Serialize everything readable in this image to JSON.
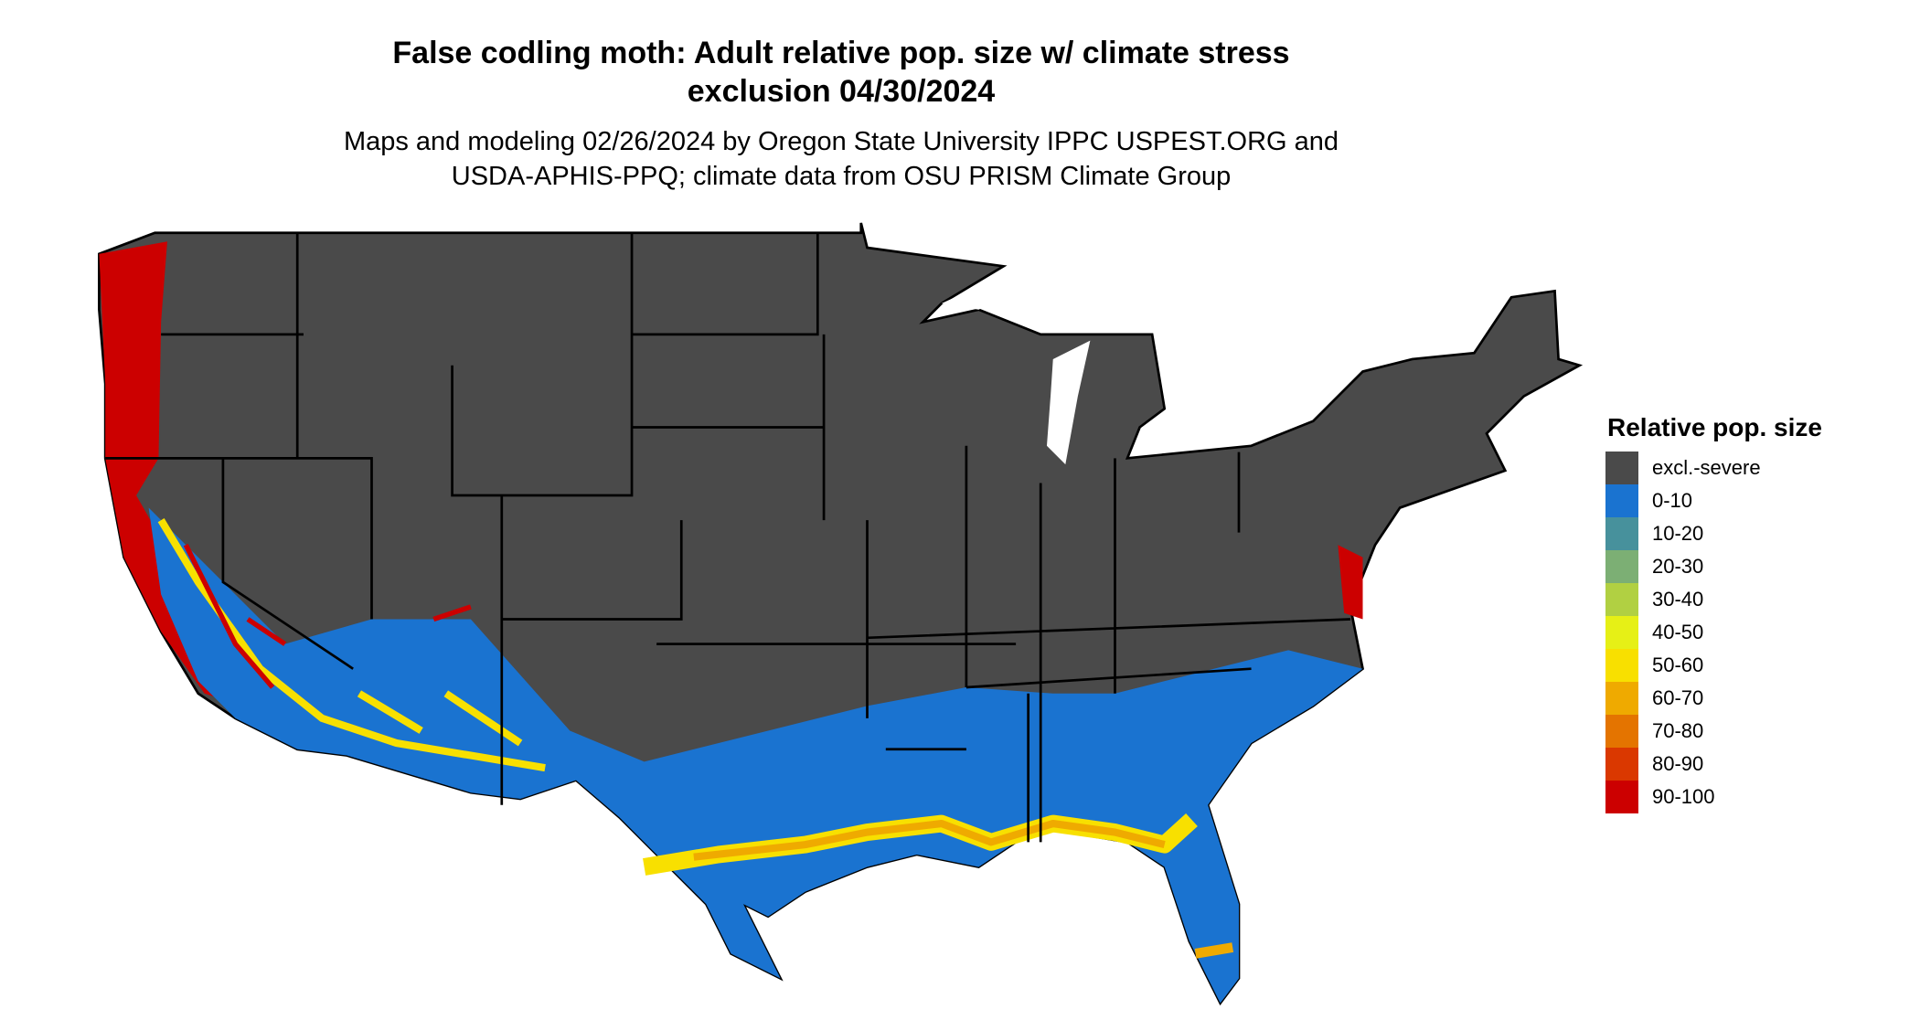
{
  "title": {
    "line1": "False codling moth: Adult relative pop. size w/ climate stress",
    "line2": "exclusion 04/30/2024"
  },
  "subtitle": {
    "line1": "Maps and modeling 02/26/2024 by Oregon State University IPPC USPEST.ORG and",
    "line2": "USDA-APHIS-PPQ; climate data from OSU PRISM Climate Group"
  },
  "legend": {
    "title": "Relative pop. size",
    "items": [
      {
        "label": "excl.-severe",
        "color": "#4a4a4a"
      },
      {
        "label": "0-10",
        "color": "#1a73d0"
      },
      {
        "label": "10-20",
        "color": "#47919c"
      },
      {
        "label": "20-30",
        "color": "#7caf74"
      },
      {
        "label": "30-40",
        "color": "#b1d042"
      },
      {
        "label": "40-50",
        "color": "#e6f016"
      },
      {
        "label": "50-60",
        "color": "#f8e000"
      },
      {
        "label": "60-70",
        "color": "#efaa00"
      },
      {
        "label": "70-80",
        "color": "#e47400"
      },
      {
        "label": "80-90",
        "color": "#da3800"
      },
      {
        "label": "90-100",
        "color": "#cc0000"
      }
    ]
  }
}
